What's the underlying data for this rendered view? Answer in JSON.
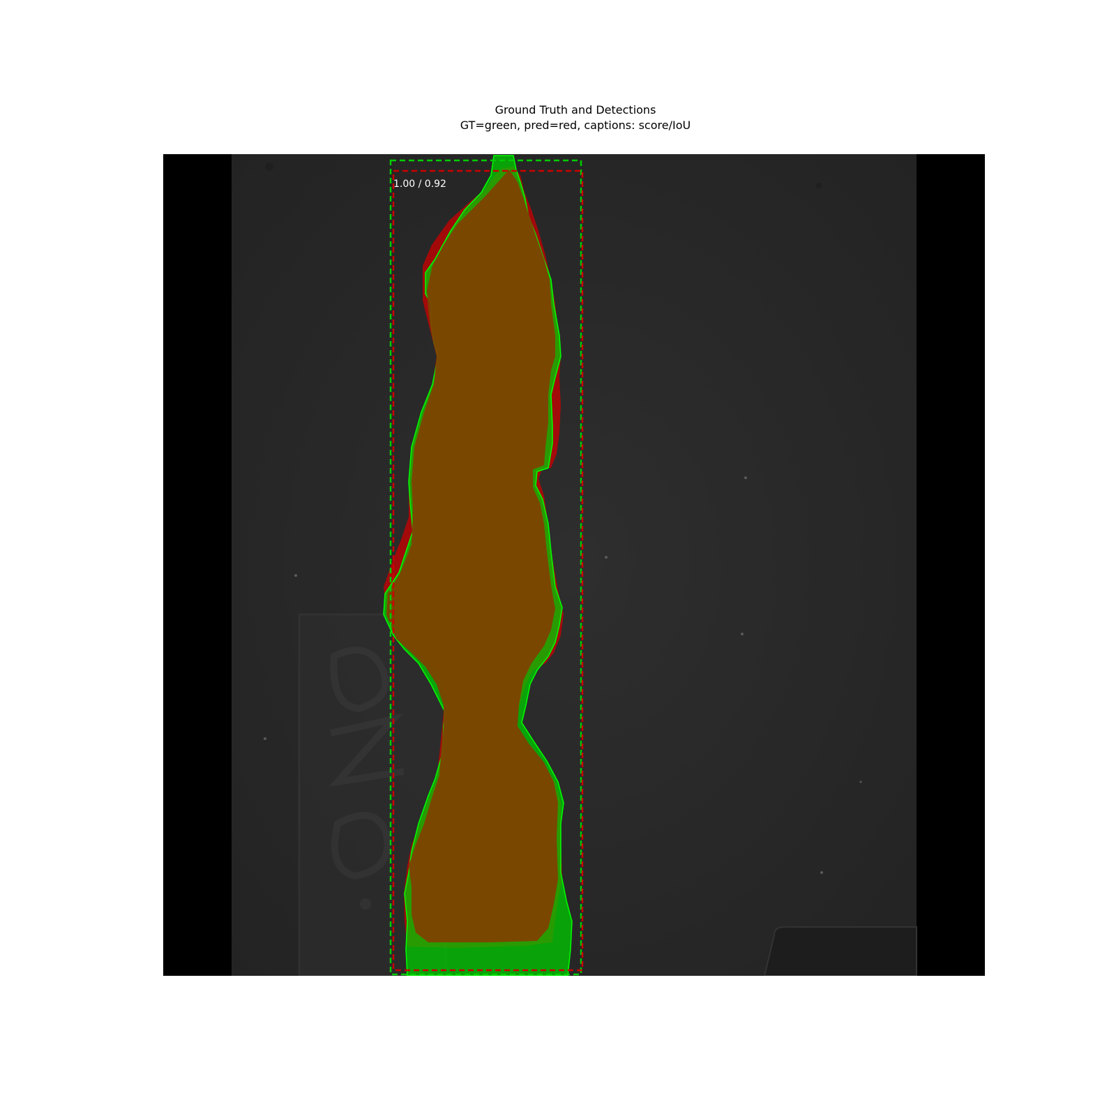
{
  "figure": {
    "title": "Ground Truth and Detections",
    "subtitle": "GT=green, pred=red, captions: score/IoU"
  },
  "detection": {
    "caption": "1.00 / 0.92",
    "score": 1.0,
    "iou": 0.92
  },
  "colors": {
    "ground_truth": "#00cc00",
    "prediction": "#cc0000",
    "overlap": "#804000",
    "background": "#2b2b2b",
    "pad": "#000000"
  }
}
